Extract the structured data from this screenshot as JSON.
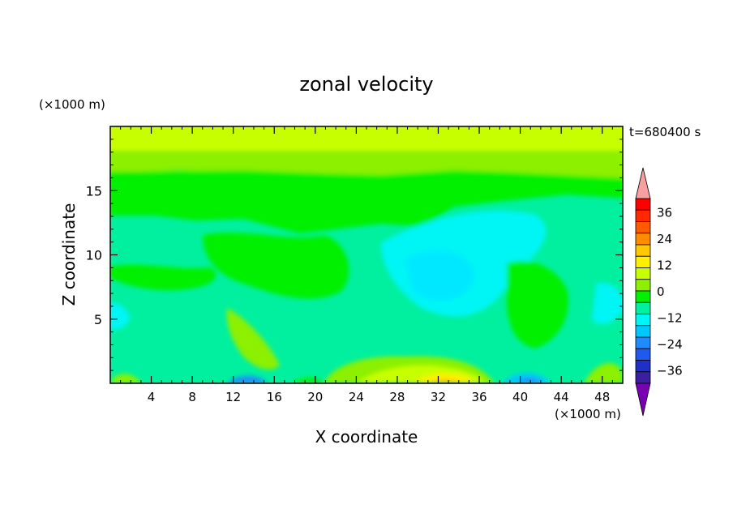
{
  "chart_data": {
    "type": "heatmap",
    "title": "zonal velocity",
    "xlabel": "X coordinate",
    "ylabel": "Z coordinate",
    "x_unit": "(×1000 m)",
    "y_unit": "(×1000 m)",
    "time_label": "t=680400 s",
    "xlim": [
      0,
      50
    ],
    "ylim": [
      0,
      20
    ],
    "x_ticks": [
      4,
      8,
      12,
      16,
      20,
      24,
      28,
      32,
      36,
      40,
      44,
      48
    ],
    "y_ticks": [
      5,
      10,
      15
    ],
    "colorbar": {
      "levels": [
        -42,
        -36,
        -30,
        -24,
        -18,
        -12,
        -6,
        0,
        6,
        12,
        18,
        24,
        30,
        36,
        42
      ],
      "tick_labels": [
        "36",
        "24",
        "12",
        "0",
        "−12",
        "−24",
        "−36"
      ],
      "tick_values": [
        36,
        24,
        12,
        0,
        -12,
        -24,
        -36
      ],
      "colors": [
        "#7a00b4",
        "#3c1fa0",
        "#1e30c8",
        "#1e5af0",
        "#1e8cff",
        "#00c8ff",
        "#00f5f5",
        "#00f0a0",
        "#00f000",
        "#8cf000",
        "#c8ff00",
        "#fff000",
        "#ffc800",
        "#ff8c00",
        "#ff5a00",
        "#ff2800",
        "#ff0000",
        "#f8a0a0"
      ],
      "extend": "both"
    },
    "field_description_features": [
      {
        "label": "upper_band",
        "x": [
          0,
          50
        ],
        "z": [
          15,
          20
        ],
        "value_range": [
          0,
          12
        ]
      },
      {
        "label": "core_negative",
        "x": [
          24,
          37
        ],
        "z": [
          3,
          12
        ],
        "value_range": [
          -12,
          -6
        ]
      },
      {
        "label": "surface_positive",
        "x": [
          26,
          36
        ],
        "z": [
          0,
          2
        ],
        "value_range": [
          6,
          18
        ]
      }
    ]
  },
  "colors": {
    "background": "#ffffff",
    "axes": "#000000"
  }
}
